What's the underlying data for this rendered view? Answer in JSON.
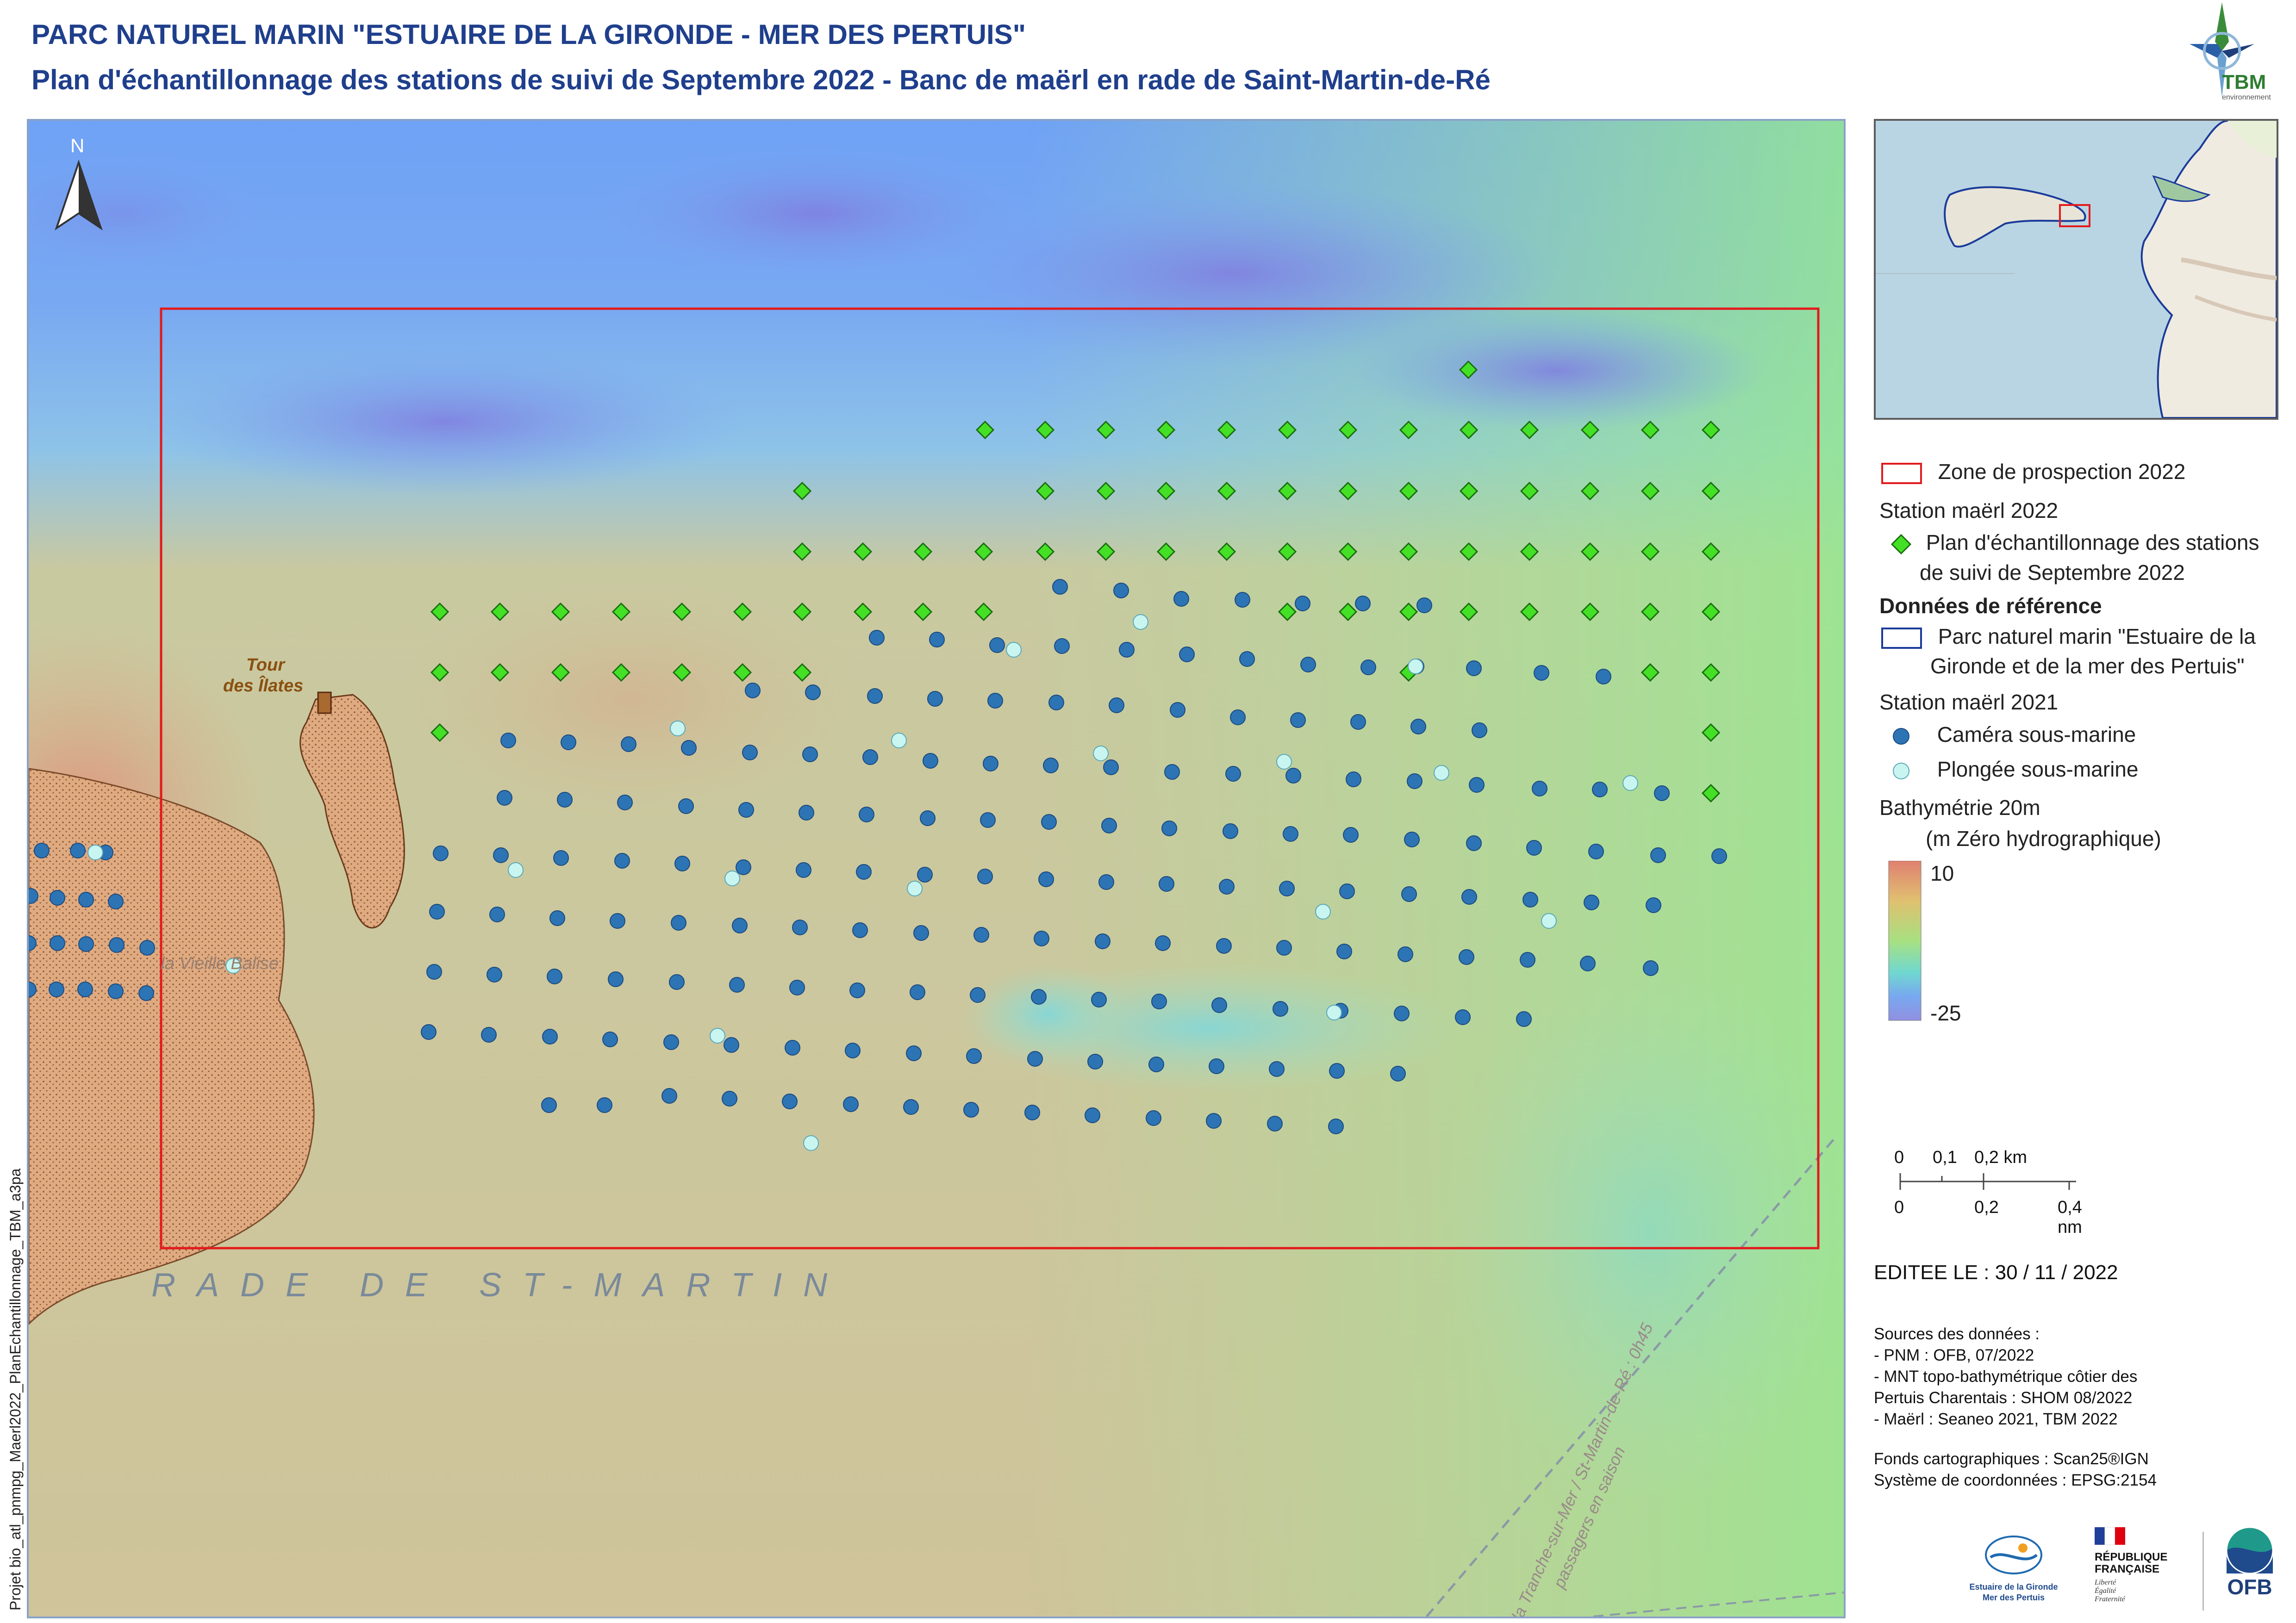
{
  "header": {
    "title": "PARC NATUREL MARIN \"ESTUAIRE DE LA GIRONDE - MER DES PERTUIS\"",
    "subtitle": "Plan d'échantillonnage des stations de suivi de Septembre 2022 - Banc de maërl en rade de Saint-Martin-de-Ré"
  },
  "logo_tbm": {
    "text": "TBM",
    "subtext": "environnement"
  },
  "map": {
    "north_label": "N",
    "rade_label": "RADE DE ST-MARTIN",
    "tour_label_1": "Tour",
    "tour_label_2": "des Îlates",
    "vieille_balise_label": "la Vieille Balise",
    "ferry_label_1": "la Tranche-sur-Mer / St-Martin-de-Ré : 0h45",
    "ferry_label_2": "passagers en saison",
    "colors": {
      "zone": "#e31a1c",
      "diamond_fill": "#44e026",
      "diamond_stroke": "#1b6e10",
      "camera": "#2d74b4",
      "plongee": "#c9f5f0"
    }
  },
  "side_label": "Projet bio_atl_pnmpg_Maerl2022_PlanEchantillonnage_TBM_a3pa",
  "legend": {
    "zone_label": "Zone de prospection 2022",
    "station2022_title": "Station maërl 2022",
    "plan_label_1": "Plan d'échantillonnage des stations",
    "plan_label_2": "de suivi de Septembre 2022",
    "ref_title": "Données de référence",
    "parc_label_1": "Parc naturel marin \"Estuaire de la",
    "parc_label_2": "Gironde et de la mer des Pertuis\"",
    "station2021_title": "Station maërl 2021",
    "camera_label": "Caméra sous-marine",
    "plongee_label": "Plongée sous-marine",
    "bathy_title": "Bathymétrie 20m",
    "bathy_unit": "(m Zéro hydrographique)",
    "bathy_max": "10",
    "bathy_min": "-25"
  },
  "scale": {
    "km_labels": [
      "0",
      "0,1",
      "0,2 km"
    ],
    "nm_labels": [
      "0",
      "0,2",
      "0,4 nm"
    ]
  },
  "editee": "EDITEE LE : 30 / 11 / 2022",
  "sources": {
    "title": "Sources des données :",
    "lines": [
      "- PNM : OFB, 07/2022",
      "- MNT topo-bathymétrique côtier des",
      "Pertuis Charentais : SHOM 08/2022",
      "- Maërl : Seaneo 2021, TBM 2022"
    ],
    "fonds": "Fonds cartographiques : Scan25®IGN",
    "systeme": "Système de coordonnées : EPSG:2154"
  },
  "logos": {
    "parc_1": "Estuaire de la Gironde",
    "parc_2": "Mer des Pertuis",
    "rf_1": "RÉPUBLIQUE",
    "rf_2": "FRANÇAISE",
    "rf_3": "Liberté",
    "rf_4": "Égalité",
    "rf_5": "Fraternité",
    "ofb": "OFB"
  }
}
